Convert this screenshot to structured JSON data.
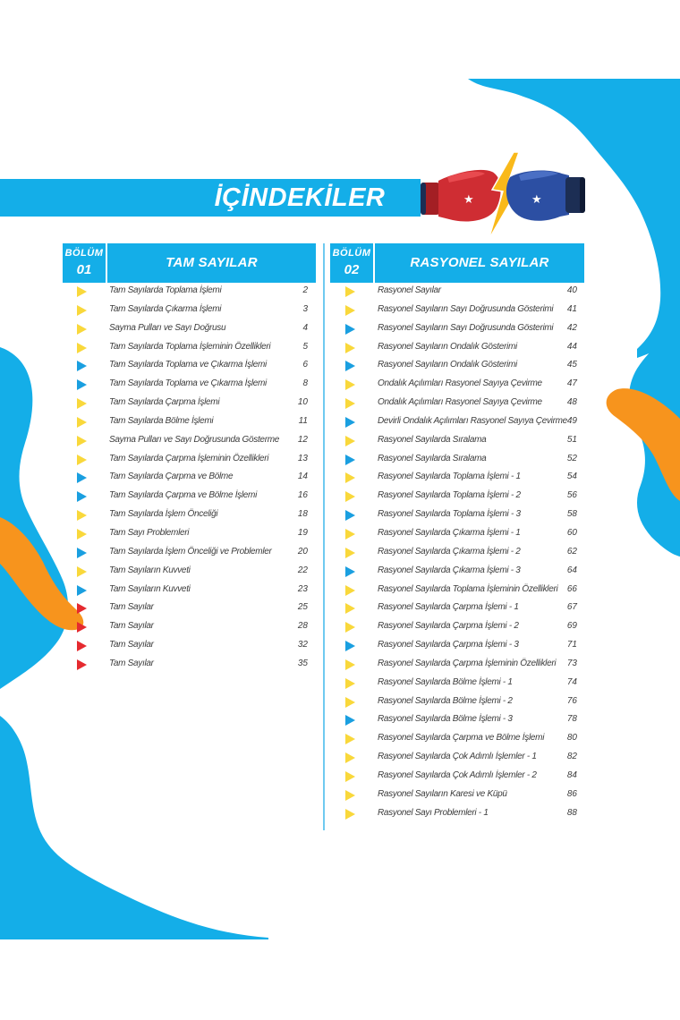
{
  "header": {
    "title": "İÇİNDEKİLER"
  },
  "colors": {
    "accent_blue": "#14aee8",
    "orange": "#f7941d",
    "yellow": "#f9d83b",
    "red": "#e52a2f"
  },
  "sections": [
    {
      "bolum_label": "BÖLÜM",
      "bolum_number": "01",
      "title": "TAM SAYILAR",
      "items": [
        {
          "title": "Tam Sayılarda Toplama İşlemi",
          "page": "2",
          "marker": "yellow"
        },
        {
          "title": "Tam Sayılarda Çıkarma İşlemi",
          "page": "3",
          "marker": "yellow"
        },
        {
          "title": "Sayma Pulları ve Sayı Doğrusu",
          "page": "4",
          "marker": "yellow"
        },
        {
          "title": "Tam Sayılarda Toplama İşleminin Özellikleri",
          "page": "5",
          "marker": "yellow"
        },
        {
          "title": "Tam Sayılarda Toplama ve Çıkarma İşlemi",
          "page": "6",
          "marker": "blue"
        },
        {
          "title": "Tam Sayılarda Toplama ve Çıkarma İşlemi",
          "page": "8",
          "marker": "blue"
        },
        {
          "title": "Tam Sayılarda Çarpma İşlemi",
          "page": "10",
          "marker": "yellow"
        },
        {
          "title": "Tam Sayılarda Bölme İşlemi",
          "page": "11",
          "marker": "yellow"
        },
        {
          "title": "Sayma Pulları ve Sayı Doğrusunda Gösterme",
          "page": "12",
          "marker": "yellow"
        },
        {
          "title": "Tam Sayılarda Çarpma İşleminin Özellikleri",
          "page": "13",
          "marker": "yellow"
        },
        {
          "title": "Tam Sayılarda Çarpma ve Bölme",
          "page": "14",
          "marker": "blue"
        },
        {
          "title": "Tam Sayılarda Çarpma ve Bölme İşlemi",
          "page": "16",
          "marker": "blue"
        },
        {
          "title": "Tam Sayılarda İşlem Önceliği",
          "page": "18",
          "marker": "yellow"
        },
        {
          "title": "Tam Sayı Problemleri",
          "page": "19",
          "marker": "yellow"
        },
        {
          "title": "Tam Sayılarda İşlem Önceliği ve Problemler",
          "page": "20",
          "marker": "blue"
        },
        {
          "title": "Tam Sayıların Kuvveti",
          "page": "22",
          "marker": "yellow"
        },
        {
          "title": "Tam Sayıların Kuvveti",
          "page": "23",
          "marker": "blue"
        },
        {
          "title": "Tam Sayılar",
          "page": "25",
          "marker": "red"
        },
        {
          "title": "Tam Sayılar",
          "page": "28",
          "marker": "red"
        },
        {
          "title": "Tam Sayılar",
          "page": "32",
          "marker": "red"
        },
        {
          "title": "Tam Sayılar",
          "page": "35",
          "marker": "red"
        }
      ]
    },
    {
      "bolum_label": "BÖLÜM",
      "bolum_number": "02",
      "title": "RASYONEL SAYILAR",
      "items": [
        {
          "title": "Rasyonel Sayılar",
          "page": "40",
          "marker": "yellow"
        },
        {
          "title": "Rasyonel Sayıların Sayı Doğrusunda Gösterimi",
          "page": "41",
          "marker": "yellow"
        },
        {
          "title": "Rasyonel Sayıların Sayı Doğrusunda Gösterimi",
          "page": "42",
          "marker": "blue"
        },
        {
          "title": "Rasyonel Sayıların Ondalık Gösterimi",
          "page": "44",
          "marker": "yellow"
        },
        {
          "title": "Rasyonel Sayıların Ondalık Gösterimi",
          "page": "45",
          "marker": "blue"
        },
        {
          "title": "Ondalık Açılımları Rasyonel Sayıya Çevirme",
          "page": "47",
          "marker": "yellow"
        },
        {
          "title": "Ondalık Açılımları Rasyonel Sayıya Çevirme",
          "page": "48",
          "marker": "yellow"
        },
        {
          "title": "Devirli Ondalık Açılımları Rasyonel Sayıya Çevirme",
          "page": "49",
          "marker": "blue"
        },
        {
          "title": "Rasyonel Sayılarda Sıralama",
          "page": "51",
          "marker": "yellow"
        },
        {
          "title": "Rasyonel Sayılarda Sıralama",
          "page": "52",
          "marker": "blue"
        },
        {
          "title": "Rasyonel Sayılarda Toplama İşlemi - 1",
          "page": "54",
          "marker": "yellow"
        },
        {
          "title": "Rasyonel Sayılarda Toplama İşlemi - 2",
          "page": "56",
          "marker": "yellow"
        },
        {
          "title": "Rasyonel Sayılarda Toplama İşlemi - 3",
          "page": "58",
          "marker": "blue"
        },
        {
          "title": "Rasyonel Sayılarda Çıkarma İşlemi - 1",
          "page": "60",
          "marker": "yellow"
        },
        {
          "title": "Rasyonel Sayılarda Çıkarma İşlemi - 2",
          "page": "62",
          "marker": "yellow"
        },
        {
          "title": "Rasyonel Sayılarda Çıkarma İşlemi - 3",
          "page": "64",
          "marker": "blue"
        },
        {
          "title": "Rasyonel Sayılarda Toplama İşleminin Özellikleri",
          "page": "66",
          "marker": "yellow"
        },
        {
          "title": "Rasyonel Sayılarda Çarpma İşlemi - 1",
          "page": "67",
          "marker": "yellow"
        },
        {
          "title": "Rasyonel Sayılarda Çarpma İşlemi - 2",
          "page": "69",
          "marker": "yellow"
        },
        {
          "title": "Rasyonel Sayılarda Çarpma İşlemi - 3",
          "page": "71",
          "marker": "blue"
        },
        {
          "title": "Rasyonel Sayılarda Çarpma İşleminin Özellikleri",
          "page": "73",
          "marker": "yellow"
        },
        {
          "title": "Rasyonel Sayılarda Bölme İşlemi - 1",
          "page": "74",
          "marker": "yellow"
        },
        {
          "title": "Rasyonel Sayılarda Bölme İşlemi - 2",
          "page": "76",
          "marker": "yellow"
        },
        {
          "title": "Rasyonel Sayılarda Bölme İşlemi - 3",
          "page": "78",
          "marker": "blue"
        },
        {
          "title": "Rasyonel Sayılarda Çarpma ve Bölme İşlemi",
          "page": "80",
          "marker": "yellow"
        },
        {
          "title": "Rasyonel Sayılarda Çok Adımlı İşlemler - 1",
          "page": "82",
          "marker": "yellow"
        },
        {
          "title": "Rasyonel Sayılarda Çok Adımlı İşlemler - 2",
          "page": "84",
          "marker": "yellow"
        },
        {
          "title": "Rasyonel Sayıların Karesi ve Küpü",
          "page": "86",
          "marker": "yellow"
        },
        {
          "title": "Rasyonel Sayı Problemleri - 1",
          "page": "88",
          "marker": "yellow"
        }
      ]
    }
  ]
}
